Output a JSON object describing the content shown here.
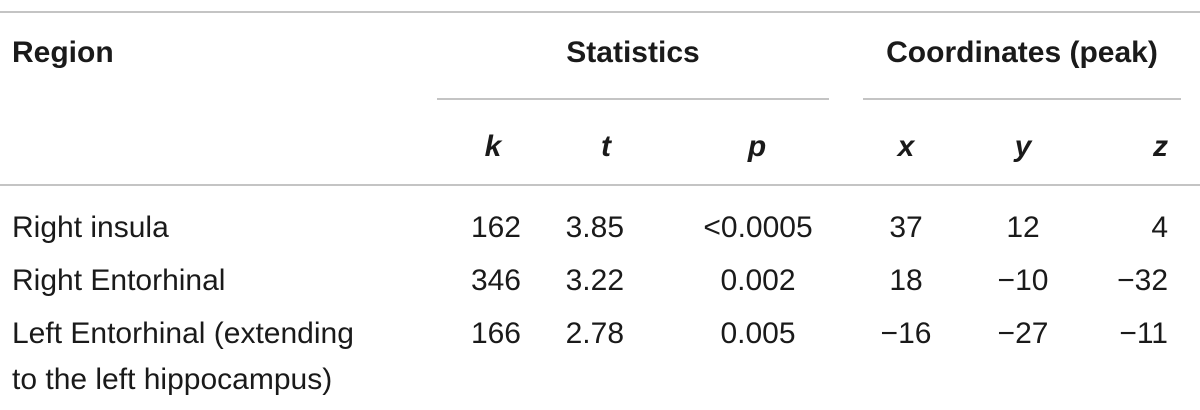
{
  "table": {
    "headers": {
      "region": "Region",
      "statistics": "Statistics",
      "coordinates": "Coordinates (peak)"
    },
    "subheaders": {
      "k": "k",
      "t": "t",
      "p": "p",
      "x": "x",
      "y": "y",
      "z": "z"
    },
    "rows": [
      {
        "region": "Right insula",
        "k": "162",
        "t": "3.85",
        "p": "<0.0005",
        "x": "37",
        "y": "12",
        "z": "4"
      },
      {
        "region": "Right Entorhinal",
        "k": "346",
        "t": "3.22",
        "p": "0.002",
        "x": "18",
        "y": "−10",
        "z": "−32"
      },
      {
        "region_line1": "Left Entorhinal (extending",
        "region_line2": "to the left hippocampus)",
        "k": "166",
        "t": "2.78",
        "p": "0.005",
        "x": "−16",
        "y": "−27",
        "z": "−11"
      }
    ]
  }
}
